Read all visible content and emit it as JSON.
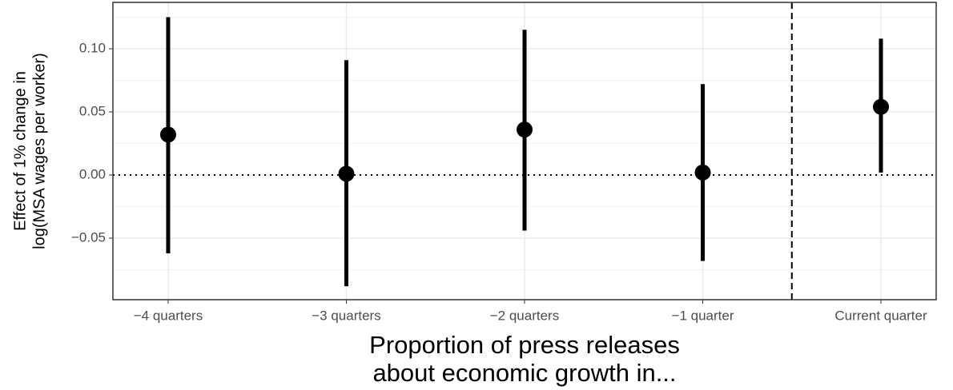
{
  "chart_data": {
    "type": "pointrange",
    "xlabel": [
      "Proportion of press releases",
      "about economic growth in..."
    ],
    "ylabel": [
      "Effect of 1% change in",
      "log(MSA wages per worker)"
    ],
    "categories": [
      "−4 quarters",
      "−3 quarters",
      "−2 quarters",
      "−1 quarter",
      "Current quarter"
    ],
    "series": [
      {
        "color": "#000000",
        "values": [
          0.032,
          0.001,
          0.036,
          0.002,
          0.054
        ],
        "lower": [
          -0.062,
          -0.088,
          -0.044,
          -0.068,
          0.002
        ],
        "upper": [
          0.125,
          0.091,
          0.115,
          0.072,
          0.108
        ]
      }
    ],
    "ylim": [
      -0.0987,
      0.1367
    ],
    "yticks": [
      {
        "value": -0.05,
        "label": "−0.05"
      },
      {
        "value": 0,
        "label": "0.00"
      },
      {
        "value": 0.05,
        "label": "0.05"
      },
      {
        "value": 0.1,
        "label": "0.10"
      }
    ],
    "hline": 0,
    "grid": true
  }
}
